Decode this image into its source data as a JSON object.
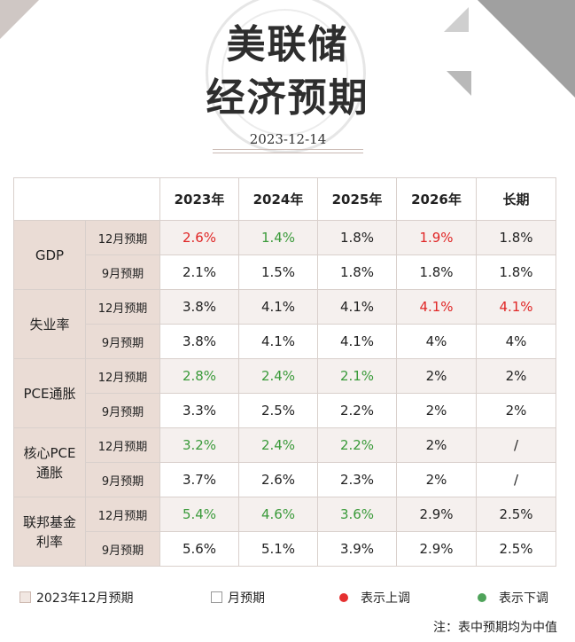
{
  "title": {
    "line1": "美联储",
    "line2": "经济预期"
  },
  "date": "2023-12-14",
  "table": {
    "columns": [
      "2023年",
      "2024年",
      "2025年",
      "2026年",
      "长期"
    ],
    "rows": [
      {
        "category": "GDP",
        "sub": "12月预期",
        "cells": [
          {
            "v": "2.6%",
            "t": "up"
          },
          {
            "v": "1.4%",
            "t": "down"
          },
          {
            "v": "1.8%",
            "t": ""
          },
          {
            "v": "1.9%",
            "t": "up"
          },
          {
            "v": "1.8%",
            "t": ""
          }
        ]
      },
      {
        "sub": "9月预期",
        "cells": [
          {
            "v": "2.1%",
            "t": ""
          },
          {
            "v": "1.5%",
            "t": ""
          },
          {
            "v": "1.8%",
            "t": ""
          },
          {
            "v": "1.8%",
            "t": ""
          },
          {
            "v": "1.8%",
            "t": ""
          }
        ]
      },
      {
        "category": "失业率",
        "sub": "12月预期",
        "cells": [
          {
            "v": "3.8%",
            "t": ""
          },
          {
            "v": "4.1%",
            "t": ""
          },
          {
            "v": "4.1%",
            "t": ""
          },
          {
            "v": "4.1%",
            "t": "up"
          },
          {
            "v": "4.1%",
            "t": "up"
          }
        ]
      },
      {
        "sub": "9月预期",
        "cells": [
          {
            "v": "3.8%",
            "t": ""
          },
          {
            "v": "4.1%",
            "t": ""
          },
          {
            "v": "4.1%",
            "t": ""
          },
          {
            "v": "4%",
            "t": ""
          },
          {
            "v": "4%",
            "t": ""
          }
        ]
      },
      {
        "category": "PCE通胀",
        "sub": "12月预期",
        "cells": [
          {
            "v": "2.8%",
            "t": "down"
          },
          {
            "v": "2.4%",
            "t": "down"
          },
          {
            "v": "2.1%",
            "t": "down"
          },
          {
            "v": "2%",
            "t": ""
          },
          {
            "v": "2%",
            "t": ""
          }
        ]
      },
      {
        "sub": "9月预期",
        "cells": [
          {
            "v": "3.3%",
            "t": ""
          },
          {
            "v": "2.5%",
            "t": ""
          },
          {
            "v": "2.2%",
            "t": ""
          },
          {
            "v": "2%",
            "t": ""
          },
          {
            "v": "2%",
            "t": ""
          }
        ]
      },
      {
        "category": "核心PCE\n通胀",
        "sub": "12月预期",
        "cells": [
          {
            "v": "3.2%",
            "t": "down"
          },
          {
            "v": "2.4%",
            "t": "down"
          },
          {
            "v": "2.2%",
            "t": "down"
          },
          {
            "v": "2%",
            "t": ""
          },
          {
            "v": "/",
            "t": ""
          }
        ]
      },
      {
        "sub": "9月预期",
        "cells": [
          {
            "v": "3.7%",
            "t": ""
          },
          {
            "v": "2.6%",
            "t": ""
          },
          {
            "v": "2.3%",
            "t": ""
          },
          {
            "v": "2%",
            "t": ""
          },
          {
            "v": "/",
            "t": ""
          }
        ]
      },
      {
        "category": "联邦基金\n利率",
        "sub": "12月预期",
        "cells": [
          {
            "v": "5.4%",
            "t": "down"
          },
          {
            "v": "4.6%",
            "t": "down"
          },
          {
            "v": "3.6%",
            "t": "down"
          },
          {
            "v": "2.9%",
            "t": ""
          },
          {
            "v": "2.5%",
            "t": ""
          }
        ]
      },
      {
        "sub": "9月预期",
        "cells": [
          {
            "v": "5.6%",
            "t": ""
          },
          {
            "v": "5.1%",
            "t": ""
          },
          {
            "v": "3.9%",
            "t": ""
          },
          {
            "v": "2.9%",
            "t": ""
          },
          {
            "v": "2.5%",
            "t": ""
          }
        ]
      }
    ]
  },
  "legend": {
    "dec_label": "2023年12月预期",
    "sep_label": "月预期",
    "up_label": "表示上调",
    "down_label": "表示下调"
  },
  "note": "注：表中预期均为中值",
  "colors": {
    "up": "#e02626",
    "down": "#3a9a3a",
    "category_bg": "#eadcd5"
  }
}
